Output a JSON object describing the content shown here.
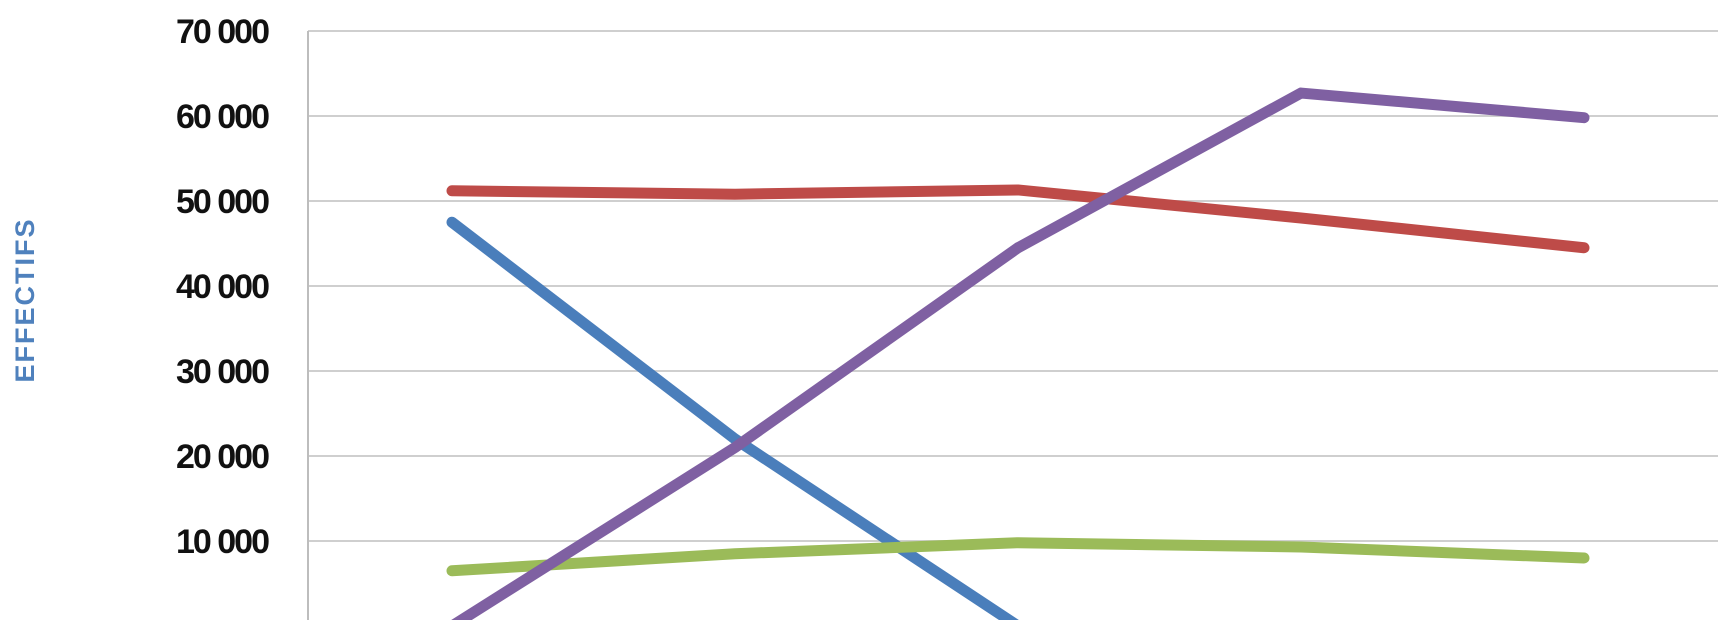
{
  "chart_data": {
    "type": "line",
    "ylabel": "EFFECTIFS",
    "ylim": [
      0,
      70000
    ],
    "yticks": [
      10000,
      20000,
      30000,
      40000,
      50000,
      60000,
      70000
    ],
    "ytick_labels": [
      "10 000",
      "20 000",
      "30 000",
      "40 000",
      "50 000",
      "60 000",
      "70 000"
    ],
    "grid": true,
    "x_points": 5,
    "series": [
      {
        "color": "#4a7ebb",
        "values": [
          47500,
          22000,
          0,
          0,
          0
        ]
      },
      {
        "color": "#be4b48",
        "values": [
          51200,
          50800,
          51300,
          48000,
          44500
        ]
      },
      {
        "color": "#9bbb59",
        "values": [
          6500,
          8500,
          9800,
          9300,
          8000
        ]
      },
      {
        "color": "#7f60a2",
        "values": [
          0,
          21000,
          44500,
          62700,
          59800
        ]
      }
    ]
  },
  "colors": {
    "grid": "#cfcfcf",
    "axis": "#bdbdbd",
    "ylabel": "#4f81bd"
  }
}
